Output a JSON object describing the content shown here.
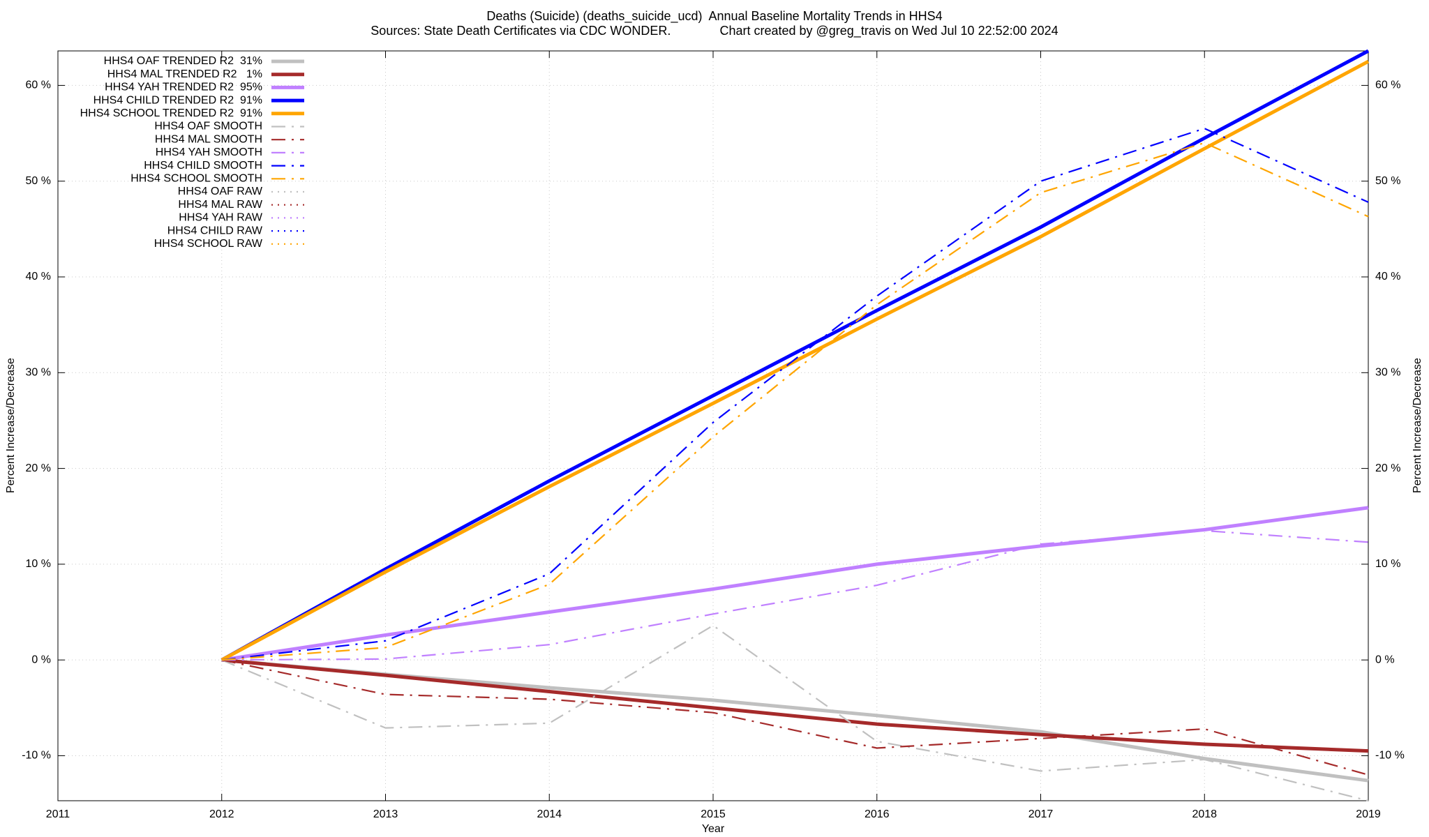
{
  "chart_data": {
    "type": "line",
    "title": "Deaths (Suicide) (deaths_suicide_ucd)  Annual Baseline Mortality Trends in HHS4",
    "subtitle": "Sources: State Death Certificates via CDC WONDER.              Chart created by @greg_travis on Wed Jul 10 22:52:00 2024",
    "x_label": "Year",
    "y_label": "Percent Increase/Decrease",
    "x": [
      2012,
      2013,
      2014,
      2015,
      2016,
      2017,
      2018,
      2019
    ],
    "xlim": [
      2011,
      2019
    ],
    "xticks": [
      2011,
      2012,
      2013,
      2014,
      2015,
      2016,
      2017,
      2018,
      2019
    ],
    "ylim": [
      -14.7,
      63.6
    ],
    "yticks": [
      {
        "value": -10,
        "label": "-10 %"
      },
      {
        "value": 0,
        "label": "0 %"
      },
      {
        "value": 10,
        "label": "10 %"
      },
      {
        "value": 20,
        "label": "20 %"
      },
      {
        "value": 30,
        "label": "30 %"
      },
      {
        "value": 40,
        "label": "40 %"
      },
      {
        "value": 50,
        "label": "50 %"
      },
      {
        "value": 60,
        "label": "60 %"
      }
    ],
    "grid": true,
    "legend": "upper left",
    "series": [
      {
        "name": "HHS4 OAF TRENDED R2  31%",
        "color": "#c0c0c0",
        "style": "solid",
        "values": [
          0,
          -1.5,
          -2.9,
          -4.2,
          -5.8,
          -7.5,
          -10.3,
          -12.6
        ]
      },
      {
        "name": "HHS4 MAL TRENDED R2   1%",
        "color": "#a52a2a",
        "style": "solid",
        "values": [
          0,
          -1.6,
          -3.3,
          -5.0,
          -6.7,
          -7.8,
          -8.8,
          -9.5
        ]
      },
      {
        "name": "HHS4 YAH TRENDED R2  95%",
        "color": "#c080ff",
        "style": "solid",
        "values": [
          0,
          2.6,
          5.0,
          7.4,
          10.0,
          11.9,
          13.6,
          15.9
        ]
      },
      {
        "name": "HHS4 CHILD TRENDED R2  91%",
        "color": "#0000ff",
        "style": "solid",
        "values": [
          0,
          9.5,
          18.7,
          27.6,
          36.5,
          45.2,
          54.5,
          63.6
        ]
      },
      {
        "name": "HHS4 SCHOOL TRENDED R2  91%",
        "color": "#ffa500",
        "style": "solid",
        "values": [
          0,
          9.2,
          18.1,
          26.8,
          35.6,
          44.2,
          53.4,
          62.5
        ]
      },
      {
        "name": "HHS4 OAF SMOOTH",
        "color": "#c0c0c0",
        "style": "dashdot",
        "values": [
          0,
          -7.1,
          -6.6,
          3.6,
          -8.5,
          -11.6,
          -10.4,
          -14.7
        ]
      },
      {
        "name": "HHS4 MAL SMOOTH",
        "color": "#a52a2a",
        "style": "dashdot",
        "values": [
          0,
          -3.6,
          -4.1,
          -5.5,
          -9.2,
          -8.2,
          -7.2,
          -12.0
        ]
      },
      {
        "name": "HHS4 YAH SMOOTH",
        "color": "#c080ff",
        "style": "dashdot",
        "values": [
          0,
          0.1,
          1.6,
          4.8,
          7.8,
          12.1,
          13.5,
          12.3
        ]
      },
      {
        "name": "HHS4 CHILD SMOOTH",
        "color": "#0000ff",
        "style": "dashdot",
        "values": [
          0,
          2.0,
          9.0,
          24.8,
          38.0,
          50.0,
          55.5,
          47.8
        ]
      },
      {
        "name": "HHS4 SCHOOL SMOOTH",
        "color": "#ffa500",
        "style": "dashdot",
        "values": [
          0,
          1.3,
          7.9,
          23.3,
          37.1,
          48.8,
          54.0,
          46.3
        ]
      },
      {
        "name": "HHS4 OAF RAW",
        "color": "#c0c0c0",
        "style": "dotted",
        "values": [
          null,
          null,
          null,
          null,
          null,
          null,
          null,
          null
        ]
      },
      {
        "name": "HHS4 MAL RAW",
        "color": "#a52a2a",
        "style": "dotted",
        "values": [
          null,
          null,
          null,
          null,
          null,
          null,
          null,
          null
        ]
      },
      {
        "name": "HHS4 YAH RAW",
        "color": "#c080ff",
        "style": "dotted",
        "values": [
          null,
          null,
          null,
          null,
          null,
          null,
          null,
          null
        ]
      },
      {
        "name": "HHS4 CHILD RAW",
        "color": "#0000ff",
        "style": "dotted",
        "values": [
          null,
          null,
          null,
          null,
          null,
          null,
          null,
          null
        ]
      },
      {
        "name": "HHS4 SCHOOL RAW",
        "color": "#ffa500",
        "style": "dotted",
        "values": [
          null,
          null,
          null,
          null,
          null,
          null,
          null,
          null
        ]
      }
    ]
  }
}
